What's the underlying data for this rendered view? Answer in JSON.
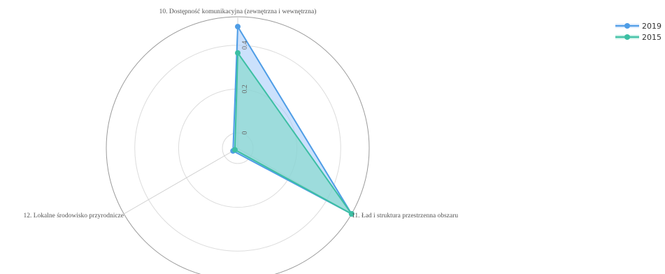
{
  "chart_data": {
    "type": "radar",
    "axes": [
      "10. Dostępność komunikacyjna (zewnętrzna i wewnętrzna)",
      "11. Ład i struktura przestrzenna obszaru",
      "12. Lokalne środowisko przyrodnicze"
    ],
    "radial_ticks": [
      "0",
      "0.2",
      "0.4"
    ],
    "r_range": [
      -0.07,
      0.53
    ],
    "series": [
      {
        "name": "2019",
        "values": [
          0.485,
          0.53,
          -0.045
        ],
        "color": "#4e9de6",
        "fill": "#a9cdfa"
      },
      {
        "name": "2015",
        "values": [
          0.365,
          0.53,
          -0.055
        ],
        "color": "#3cbfa3",
        "fill": "#7fd9c6"
      }
    ],
    "legend_position": "top-right"
  }
}
